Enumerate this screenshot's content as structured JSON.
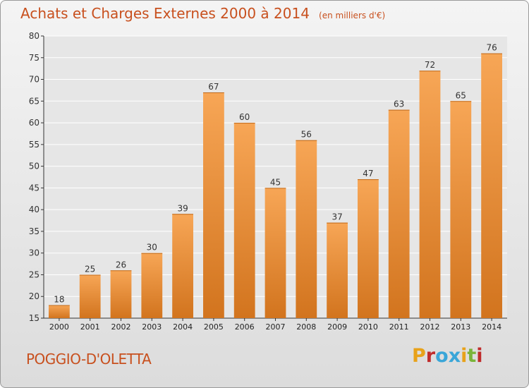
{
  "header": {
    "title": "Achats et Charges Externes 2000 à 2014",
    "unit": "(en milliers d'€)"
  },
  "footer": {
    "commune": "POGGIO-D'OLETTA",
    "logo": "Proxiti",
    "logo_colors": [
      "#e8a21a",
      "#c02c2c",
      "#3aa6d8",
      "#3aa6d8",
      "#e8a21a",
      "#7ab43a",
      "#c02c2c"
    ]
  },
  "colors": {
    "bar_light": "#f7a656",
    "bar_dark": "#d2741e",
    "text_accent": "#c8501e",
    "grid": "#ffffff"
  },
  "chart_data": {
    "type": "bar",
    "title": "Achats et Charges Externes 2000 à 2014",
    "subtitle": "(en milliers d'€)",
    "xlabel": "",
    "ylabel": "",
    "categories": [
      "2000",
      "2001",
      "2002",
      "2003",
      "2004",
      "2005",
      "2006",
      "2007",
      "2008",
      "2009",
      "2010",
      "2011",
      "2012",
      "2013",
      "2014"
    ],
    "values": [
      18,
      25,
      26,
      30,
      39,
      67,
      60,
      45,
      56,
      37,
      47,
      63,
      72,
      65,
      76
    ],
    "ylim": [
      15,
      80
    ],
    "yticks": [
      15,
      20,
      25,
      30,
      35,
      40,
      45,
      50,
      55,
      60,
      65,
      70,
      75,
      80
    ],
    "grid": true,
    "data_labels": true
  }
}
